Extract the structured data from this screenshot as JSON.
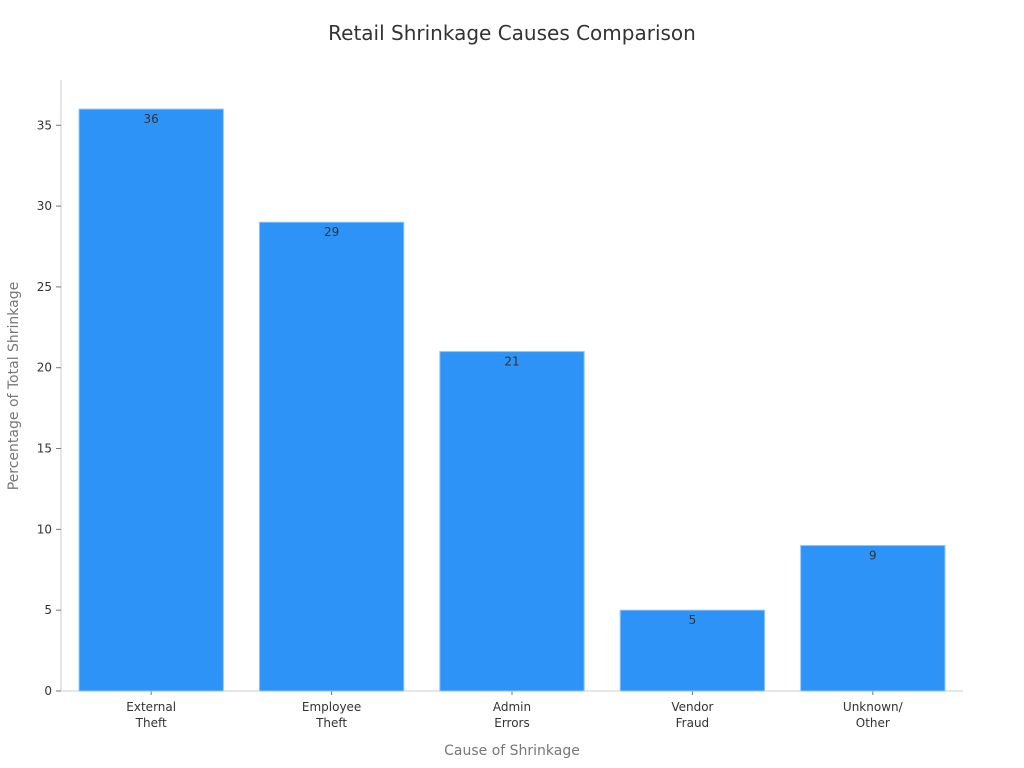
{
  "chart_data": {
    "type": "bar",
    "title": "Retail Shrinkage Causes Comparison",
    "xlabel": "Cause of Shrinkage",
    "ylabel": "Percentage of Total Shrinkage",
    "categories": [
      [
        "External",
        "Theft"
      ],
      [
        "Employee",
        "Theft"
      ],
      [
        "Admin",
        "Errors"
      ],
      [
        "Vendor",
        "Fraud"
      ],
      [
        "Unknown/",
        "Other"
      ]
    ],
    "values": [
      36,
      29,
      21,
      5,
      9
    ],
    "ylim": [
      0,
      37.8
    ],
    "yticks": [
      0,
      5,
      10,
      15,
      20,
      25,
      30,
      35
    ],
    "bar_color": "#2E93F7",
    "grid": false,
    "legend": "none"
  }
}
